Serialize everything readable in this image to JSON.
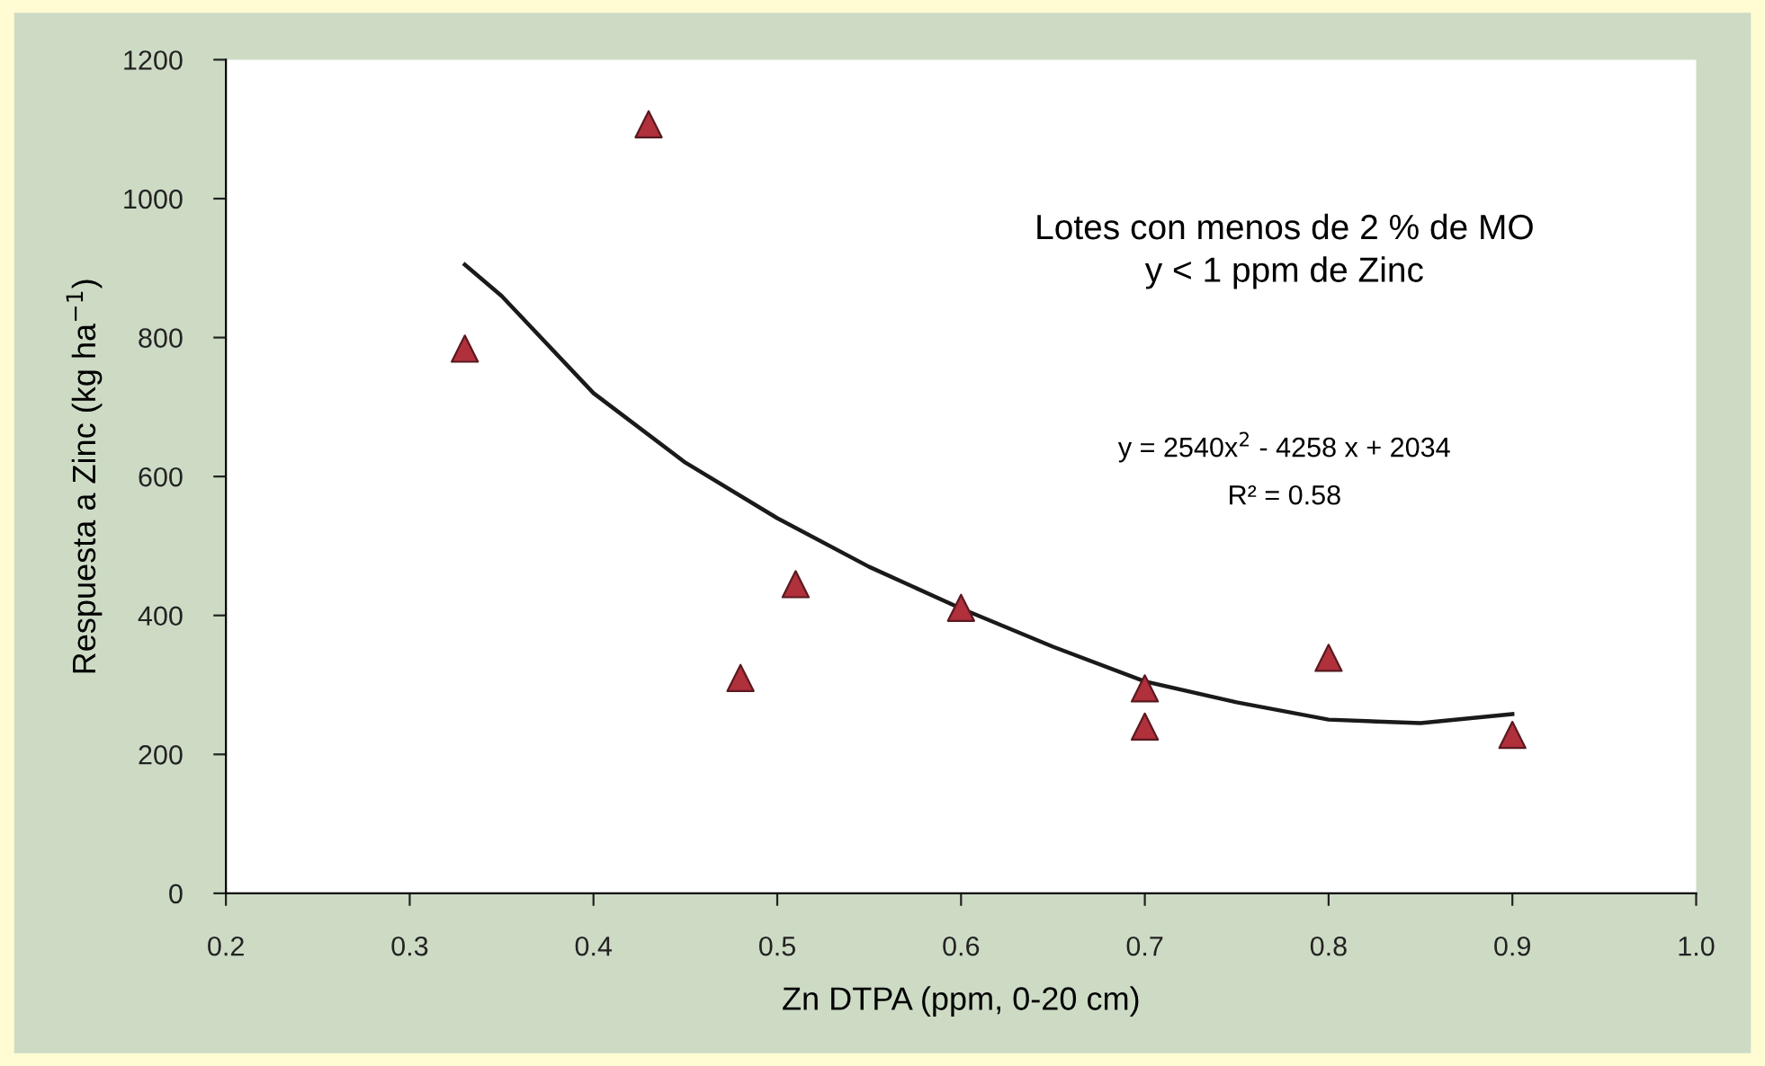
{
  "chart_data": {
    "type": "scatter",
    "xlabel": "Zn DTPA (ppm, 0-20 cm)",
    "ylabel": "Respuesta a Zinc (kg ha$^{−1}$)",
    "xlim": [
      0.2,
      1.0
    ],
    "xticks": [
      {
        "value": 0.2,
        "label": "0.2"
      },
      {
        "value": 0.3,
        "label": "0.3"
      },
      {
        "value": 0.4,
        "label": "0.4"
      },
      {
        "value": 0.5,
        "label": "0.5"
      },
      {
        "value": 0.6,
        "label": "0.6"
      },
      {
        "value": 0.7,
        "label": "0.7"
      },
      {
        "value": 0.8,
        "label": "0.8"
      },
      {
        "value": 0.9,
        "label": "0.9"
      },
      {
        "value": 1.0,
        "label": "1.0"
      }
    ],
    "ylim": [
      0,
      1200
    ],
    "yticks": [
      0,
      200,
      400,
      600,
      800,
      1000,
      1200
    ],
    "grid": false,
    "legend": false,
    "series": [
      {
        "marker": "triangle",
        "color": "#b0303c",
        "x": [
          0.33,
          0.43,
          0.48,
          0.51,
          0.6,
          0.7,
          0.7,
          0.8,
          0.9
        ],
        "values": [
          784,
          1107,
          310,
          445,
          411,
          295,
          240,
          339,
          228
        ]
      },
      {
        "type": "line",
        "marker": "none",
        "line_style": "solid",
        "color": "#1a1a1a",
        "x": [
          0.33,
          0.35,
          0.4,
          0.45,
          0.5,
          0.55,
          0.6,
          0.65,
          0.7,
          0.75,
          0.8,
          0.85,
          0.9
        ],
        "values": [
          905,
          860,
          720,
          620,
          540,
          470,
          410,
          355,
          305,
          275,
          250,
          245,
          258
        ]
      }
    ],
    "annotations": [
      "Lotes con menos de 2 % de MO\ny < 1 ppm de Zinc",
      "y = 2540x$^{2}$ - 4258 x + 2034",
      "R² = 0.58"
    ]
  }
}
